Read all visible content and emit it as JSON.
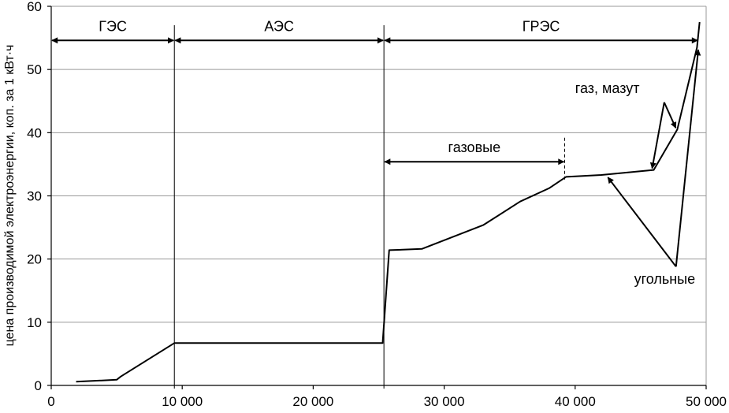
{
  "chart_data": {
    "type": "line",
    "xlabel": "",
    "ylabel": "цена производимой электроэнергии, коп. за 1 кВт·ч",
    "xlim": [
      0,
      50000
    ],
    "ylim": [
      0,
      60
    ],
    "x_ticks": [
      {
        "value": 0,
        "label": "0"
      },
      {
        "value": 10000,
        "label": "10 000"
      },
      {
        "value": 20000,
        "label": "20 000"
      },
      {
        "value": 30000,
        "label": "30 000"
      },
      {
        "value": 40000,
        "label": "40 000"
      },
      {
        "value": 50000,
        "label": "50 000"
      }
    ],
    "y_ticks": [
      {
        "value": 0,
        "label": "0"
      },
      {
        "value": 10,
        "label": "10"
      },
      {
        "value": 20,
        "label": "20"
      },
      {
        "value": 30,
        "label": "30"
      },
      {
        "value": 40,
        "label": "40"
      },
      {
        "value": 50,
        "label": "50"
      },
      {
        "value": 60,
        "label": "60"
      }
    ],
    "grid": true,
    "series": [
      {
        "points": [
          [
            1900,
            0.6
          ],
          [
            3000,
            0.7
          ],
          [
            5000,
            0.9
          ],
          [
            5300,
            1.4
          ],
          [
            9400,
            6.7
          ],
          [
            25300,
            6.7
          ],
          [
            25800,
            21.4
          ],
          [
            28300,
            21.6
          ],
          [
            33000,
            25.4
          ],
          [
            35800,
            29.1
          ],
          [
            38000,
            31.2
          ],
          [
            39300,
            33.0
          ],
          [
            42000,
            33.3
          ],
          [
            46000,
            34.1
          ],
          [
            47800,
            40.5
          ],
          [
            49300,
            53.5
          ],
          [
            49500,
            57.5
          ]
        ]
      }
    ],
    "separators": [
      9400,
      25400
    ],
    "zones": [
      {
        "label": "ГЭС",
        "from": 0,
        "to": 9400
      },
      {
        "label": "АЭС",
        "from": 9400,
        "to": 25400
      },
      {
        "label": "ГРЭС",
        "from": 25400,
        "to": 49400
      }
    ],
    "zone_arrow_y": 54.6,
    "annotations": {
      "gas_label": "газовые",
      "gas_range": [
        25400,
        39200
      ],
      "gas_y": 35.4,
      "gas_oil_label": "газ, мазут",
      "gas_oil_label_pos": [
        40000,
        46.3
      ],
      "gas_oil_targets": [
        [
          46000,
          34.1
        ],
        [
          47800,
          40.5
        ]
      ],
      "coal_label": "угольные",
      "coal_label_pos": [
        44500,
        16.1
      ],
      "coal_targets": [
        [
          42500,
          33.3
        ],
        [
          49400,
          53.5
        ]
      ]
    }
  }
}
